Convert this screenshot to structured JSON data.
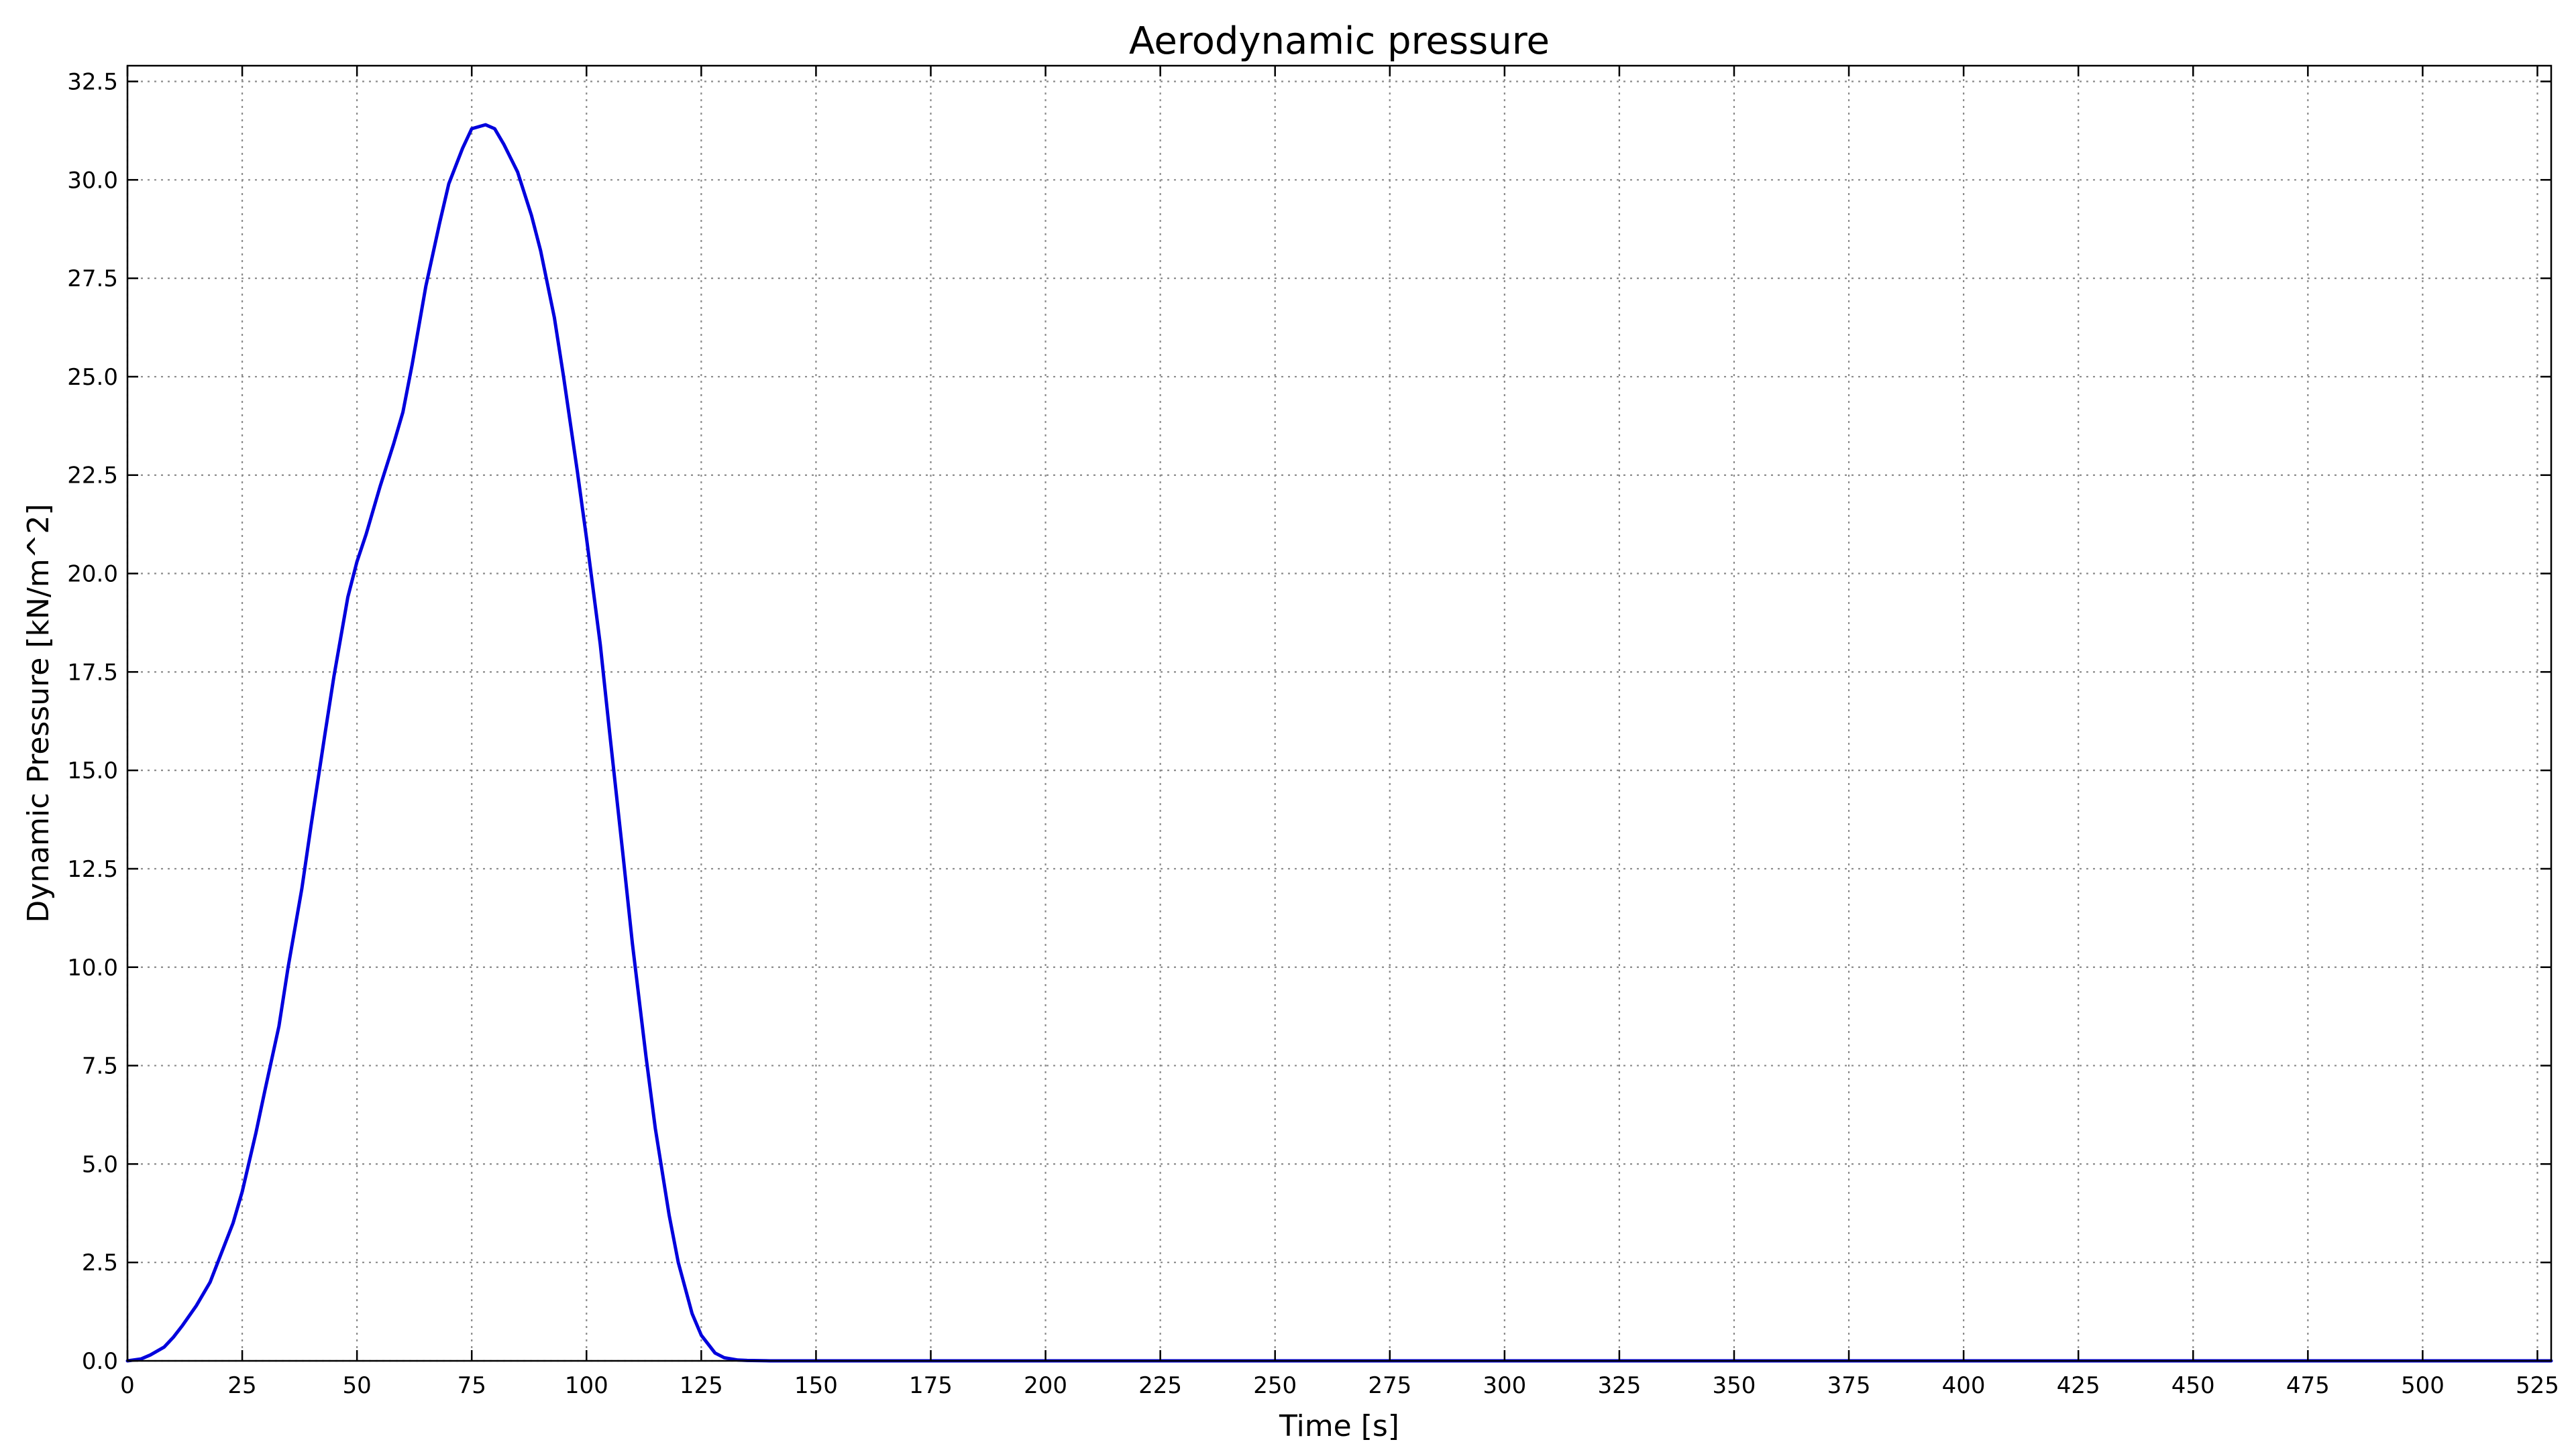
{
  "chart_data": {
    "type": "line",
    "title": "Aerodynamic pressure",
    "xlabel": "Time [s]",
    "ylabel": "Dynamic Pressure [kN/m^2]",
    "xlim": [
      0,
      528
    ],
    "ylim": [
      0,
      32.9
    ],
    "xticks": [
      0,
      25,
      50,
      75,
      100,
      125,
      150,
      175,
      200,
      225,
      250,
      275,
      300,
      325,
      350,
      375,
      400,
      425,
      450,
      475,
      500,
      525
    ],
    "xtick_labels": [
      "0",
      "25",
      "50",
      "75",
      "100",
      "125",
      "150",
      "175",
      "200",
      "225",
      "250",
      "275",
      "300",
      "325",
      "350",
      "375",
      "400",
      "425",
      "450",
      "475",
      "500",
      "525"
    ],
    "yticks": [
      0,
      2.5,
      5,
      7.5,
      10,
      12.5,
      15,
      17.5,
      20,
      22.5,
      25,
      27.5,
      30,
      32.5
    ],
    "ytick_labels": [
      "0.0",
      "2.5",
      "5.0",
      "7.5",
      "10.0",
      "12.5",
      "15.0",
      "17.5",
      "20.0",
      "22.5",
      "25.0",
      "27.5",
      "30.0",
      "32.5"
    ],
    "grid": true,
    "series": [
      {
        "color": "#0000dd",
        "x": [
          0,
          3,
          5,
          8,
          10,
          12,
          15,
          18,
          20,
          23,
          25,
          28,
          30,
          33,
          35,
          38,
          40,
          43,
          45,
          48,
          50,
          52,
          55,
          58,
          60,
          62,
          65,
          68,
          70,
          73,
          75,
          78,
          80,
          82,
          85,
          88,
          90,
          93,
          95,
          98,
          100,
          103,
          105,
          108,
          110,
          113,
          115,
          118,
          120,
          123,
          125,
          128,
          130,
          133,
          135,
          140,
          150,
          175,
          200,
          250,
          300,
          350,
          400,
          450,
          500,
          528
        ],
        "y": [
          0,
          0.05,
          0.15,
          0.35,
          0.6,
          0.9,
          1.4,
          2.0,
          2.6,
          3.5,
          4.3,
          5.8,
          6.9,
          8.5,
          10.0,
          12.0,
          13.6,
          15.9,
          17.4,
          19.4,
          20.3,
          21.0,
          22.2,
          23.3,
          24.1,
          25.3,
          27.3,
          28.9,
          29.9,
          30.8,
          31.3,
          31.4,
          31.3,
          30.9,
          30.2,
          29.1,
          28.2,
          26.5,
          25.0,
          22.6,
          20.9,
          18.2,
          16.0,
          12.8,
          10.6,
          7.7,
          5.9,
          3.7,
          2.5,
          1.2,
          0.65,
          0.2,
          0.08,
          0.02,
          0.01,
          0,
          0,
          0,
          0,
          0,
          0,
          0,
          0,
          0,
          0,
          0
        ]
      }
    ]
  }
}
